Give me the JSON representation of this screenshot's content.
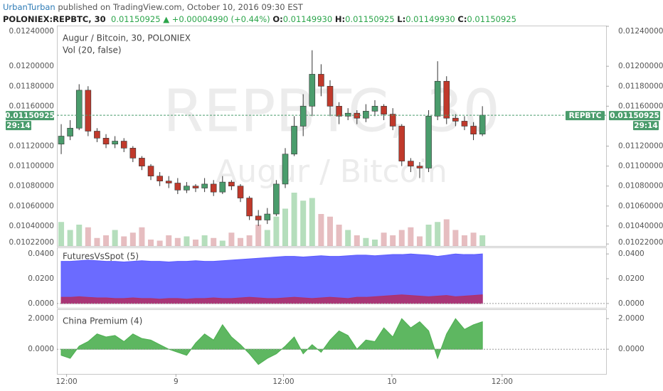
{
  "header": {
    "author": "UrbanTurban",
    "byline": "published on TradingView.com, October 10, 2016 09:30 EST",
    "symbol": "POLONIEX:REPBTC, 30",
    "price": "0.01150925",
    "change": "+0.00004990 (+0.44%)",
    "ohlc": [
      {
        "label": "O:",
        "value": "0.01149930"
      },
      {
        "label": "H:",
        "value": "0.01150925"
      },
      {
        "label": "L:",
        "value": "0.01149930"
      },
      {
        "label": "C:",
        "value": "0.01150925"
      }
    ]
  },
  "chart_data": [
    {
      "type": "candlestick",
      "title": "Augur / Bitcoin, 30, POLONIEX",
      "volume_title": "Vol (20, false)",
      "watermark": "REPBTC, 30",
      "watermark_subtitle": "Augur / Bitcoin",
      "ylim": [
        0.0102,
        0.0124
      ],
      "yticks": [
        {
          "value": 0.0124,
          "label": "0.01240000"
        },
        {
          "value": 0.012,
          "label": "0.01200000"
        },
        {
          "value": 0.0118,
          "label": "0.01180000"
        },
        {
          "value": 0.0116,
          "label": "0.01160000"
        },
        {
          "value": 0.0112,
          "label": "0.01120000"
        },
        {
          "value": 0.011,
          "label": "0.01100000"
        },
        {
          "value": 0.0108,
          "label": "0.01080000"
        },
        {
          "value": 0.0106,
          "label": "0.01060000"
        },
        {
          "value": 0.0104,
          "label": "0.01040000"
        },
        {
          "value": 0.01022,
          "label": "0.01022000"
        }
      ],
      "open": [
        0.01122,
        0.0113,
        0.01138,
        0.01176,
        0.01135,
        0.01128,
        0.01122,
        0.01125,
        0.01118,
        0.01108,
        0.011,
        0.0109,
        0.01085,
        0.01083,
        0.01076,
        0.0108,
        0.01078,
        0.01082,
        0.01074,
        0.01084,
        0.0108,
        0.01068,
        0.0105,
        0.01046,
        0.01052,
        0.01082,
        0.01112,
        0.0114,
        0.0116,
        0.01192,
        0.0118,
        0.0116,
        0.0115,
        0.01153,
        0.01148,
        0.01155,
        0.0116,
        0.01152,
        0.0114,
        0.01105,
        0.011,
        0.01098,
        0.0115,
        0.01185,
        0.01148,
        0.01145,
        0.0114,
        0.01132
      ],
      "high": [
        0.01142,
        0.01146,
        0.01182,
        0.0118,
        0.01138,
        0.01132,
        0.0113,
        0.01128,
        0.0112,
        0.0111,
        0.01102,
        0.01094,
        0.0109,
        0.01088,
        0.01084,
        0.01082,
        0.01088,
        0.01086,
        0.0109,
        0.01086,
        0.01082,
        0.0107,
        0.01056,
        0.01058,
        0.01086,
        0.01118,
        0.0115,
        0.01172,
        0.01216,
        0.01202,
        0.01186,
        0.01164,
        0.01158,
        0.01156,
        0.01162,
        0.01166,
        0.01162,
        0.01158,
        0.01142,
        0.01108,
        0.01104,
        0.01156,
        0.01205,
        0.0119,
        0.01152,
        0.0115,
        0.01144,
        0.0116
      ],
      "low": [
        0.01112,
        0.01126,
        0.01136,
        0.0113,
        0.01124,
        0.01118,
        0.01118,
        0.01114,
        0.01104,
        0.01096,
        0.01086,
        0.0108,
        0.01078,
        0.01072,
        0.01073,
        0.01074,
        0.01074,
        0.0107,
        0.01072,
        0.01076,
        0.01064,
        0.01046,
        0.0104,
        0.01042,
        0.0105,
        0.01078,
        0.0111,
        0.0113,
        0.0115,
        0.0117,
        0.0115,
        0.01142,
        0.01146,
        0.01142,
        0.01144,
        0.0115,
        0.01146,
        0.01136,
        0.011,
        0.01094,
        0.01088,
        0.01094,
        0.01146,
        0.01142,
        0.0114,
        0.01136,
        0.01126,
        0.0113
      ],
      "close": [
        0.0113,
        0.01138,
        0.01176,
        0.01135,
        0.01128,
        0.01122,
        0.01125,
        0.01118,
        0.01108,
        0.011,
        0.0109,
        0.01085,
        0.01083,
        0.01076,
        0.0108,
        0.01078,
        0.01082,
        0.01074,
        0.01084,
        0.0108,
        0.01068,
        0.0105,
        0.01046,
        0.01052,
        0.01082,
        0.01112,
        0.0114,
        0.0116,
        0.01192,
        0.0118,
        0.0116,
        0.0115,
        0.01153,
        0.01148,
        0.01155,
        0.0116,
        0.01152,
        0.0114,
        0.01105,
        0.011,
        0.01098,
        0.0115,
        0.01185,
        0.01148,
        0.01145,
        0.0114,
        0.01132,
        0.01151
      ],
      "volume": [
        45,
        30,
        40,
        35,
        15,
        20,
        30,
        18,
        25,
        35,
        12,
        10,
        20,
        15,
        18,
        12,
        20,
        15,
        10,
        25,
        15,
        20,
        40,
        30,
        55,
        70,
        100,
        85,
        90,
        60,
        55,
        40,
        30,
        20,
        15,
        12,
        25,
        20,
        30,
        35,
        18,
        40,
        45,
        50,
        30,
        20,
        25,
        20
      ],
      "up_color": "#4a9c6c",
      "down_color": "#c0392b",
      "volume_up_color": "#a8d8b0",
      "volume_down_color": "#e2b1b5",
      "last_price": {
        "value": 0.01150925,
        "label": "0.01150925"
      },
      "countdown": "29:14",
      "symbol": "REPBTC"
    },
    {
      "type": "area",
      "title": "FuturesVsSpot (5)",
      "ylim": [
        -0.0035,
        0.0447
      ],
      "yticks": [
        {
          "value": 0.04,
          "label": "0.0400"
        },
        {
          "value": 0.02,
          "label": "0.0200"
        },
        {
          "value": 0,
          "label": "0.0000"
        }
      ],
      "series": [
        {
          "color": "#5b5bff",
          "values": [
            0.034,
            0.034,
            0.0345,
            0.035,
            0.0345,
            0.034,
            0.034,
            0.0335,
            0.034,
            0.0345,
            0.034,
            0.034,
            0.0335,
            0.034,
            0.034,
            0.0345,
            0.034,
            0.034,
            0.0345,
            0.035,
            0.0355,
            0.036,
            0.0365,
            0.037,
            0.0375,
            0.038,
            0.038,
            0.0375,
            0.038,
            0.0385,
            0.038,
            0.038,
            0.0385,
            0.039,
            0.039,
            0.0385,
            0.039,
            0.0395,
            0.0395,
            0.04,
            0.0395,
            0.039,
            0.038,
            0.039,
            0.04,
            0.0395,
            0.0395,
            0.04
          ]
        },
        {
          "color": "#b03068",
          "values": [
            0.005,
            0.005,
            0.0055,
            0.005,
            0.0045,
            0.0045,
            0.004,
            0.004,
            0.0045,
            0.004,
            0.004,
            0.0035,
            0.004,
            0.004,
            0.0035,
            0.004,
            0.004,
            0.0045,
            0.004,
            0.004,
            0.0045,
            0.005,
            0.0045,
            0.004,
            0.004,
            0.0045,
            0.005,
            0.0045,
            0.004,
            0.0045,
            0.005,
            0.0045,
            0.004,
            0.005,
            0.005,
            0.0055,
            0.006,
            0.0065,
            0.007,
            0.0065,
            0.006,
            0.0055,
            0.006,
            0.0065,
            0.0055,
            0.006,
            0.0065,
            0.007
          ]
        }
      ]
    },
    {
      "type": "area",
      "title": "China Premium (4)",
      "ylim": [
        -1.62,
        2.57
      ],
      "yticks": [
        {
          "value": 2,
          "label": "2.0000"
        },
        {
          "value": 0,
          "label": "0.0000"
        }
      ],
      "series": [
        {
          "color": "#4caf50",
          "values": [
            -0.4,
            -0.6,
            0.2,
            0.5,
            1.0,
            0.8,
            0.9,
            0.5,
            1.0,
            0.7,
            0.6,
            0.3,
            0.0,
            -0.2,
            -0.4,
            0.4,
            1.0,
            0.6,
            1.6,
            0.8,
            0.3,
            -0.3,
            -1.0,
            -0.6,
            -0.3,
            0.2,
            0.8,
            -0.3,
            0.3,
            -0.2,
            0.6,
            1.2,
            0.9,
            0.0,
            0.6,
            0.5,
            1.4,
            0.8,
            2.0,
            1.4,
            1.8,
            1.2,
            -0.6,
            1.0,
            2.0,
            1.3,
            1.6,
            1.8
          ]
        }
      ],
      "xlim": [
        -0.48,
        60.8
      ],
      "xticks": [
        {
          "value": 0.6,
          "label": "12:00"
        },
        {
          "value": 12.8,
          "label": "9"
        },
        {
          "value": 24.8,
          "label": "12:00"
        },
        {
          "value": 36.9,
          "label": "10"
        },
        {
          "value": 49.2,
          "label": "12:00"
        }
      ]
    }
  ]
}
